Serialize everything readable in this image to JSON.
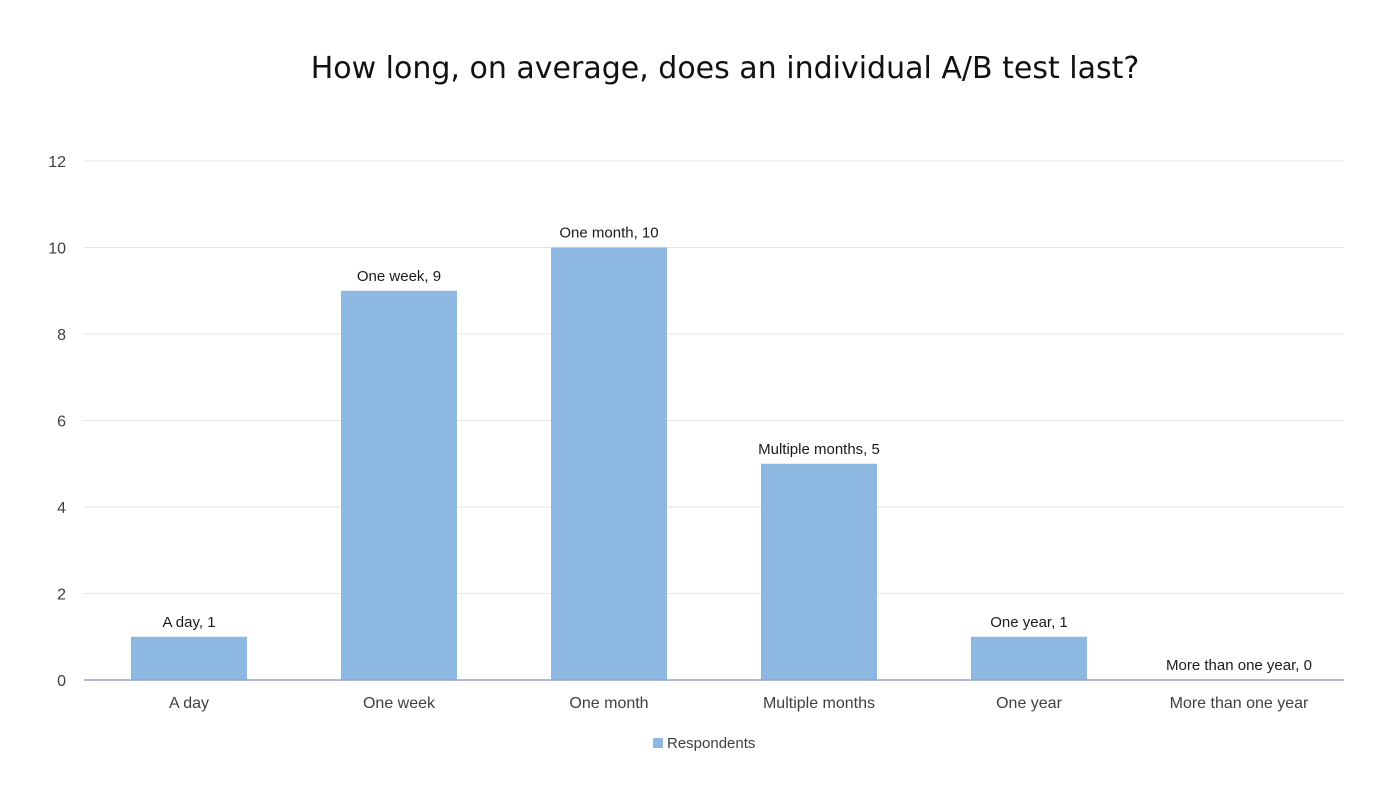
{
  "chart_data": {
    "type": "bar",
    "title": "How long, on average, does an individual A/B test last?",
    "xlabel": "",
    "ylabel": "",
    "categories": [
      "A day",
      "One week",
      "One month",
      "Multiple months",
      "One year",
      "More than one year"
    ],
    "series": [
      {
        "name": "Respondents",
        "values": [
          1,
          9,
          10,
          5,
          1,
          0
        ],
        "color": "#8db8e1"
      }
    ],
    "data_labels": [
      "A day, 1",
      "One week, 9",
      "One month, 10",
      "Multiple months, 5",
      "One year, 1",
      "More than one year, 0"
    ],
    "ylim": [
      0,
      12
    ],
    "yticks": [
      0,
      2,
      4,
      6,
      8,
      10,
      12
    ],
    "grid": true,
    "legend_position": "bottom",
    "colors": {
      "gridline": "#e6e6e6",
      "axis": "#9aa3c7"
    }
  }
}
